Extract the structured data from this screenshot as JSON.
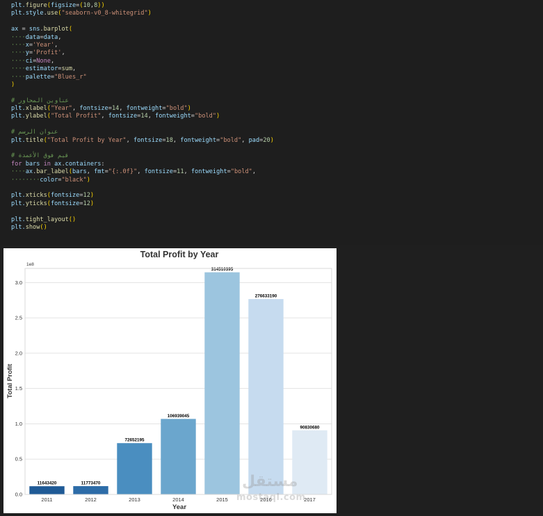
{
  "code_cell": {
    "lines": [
      [
        {
          "t": "plt.",
          "c": "n"
        },
        {
          "t": "figure",
          "c": "f"
        },
        {
          "t": "(",
          "c": "p"
        },
        {
          "t": "figsize",
          "c": "n"
        },
        {
          "t": "=",
          "c": ""
        },
        {
          "t": "(",
          "c": "p"
        },
        {
          "t": "10",
          "c": "num"
        },
        {
          "t": ",",
          "c": ""
        },
        {
          "t": "8",
          "c": "num"
        },
        {
          "t": "))",
          "c": "p"
        }
      ],
      [
        {
          "t": "plt.",
          "c": "n"
        },
        {
          "t": "style",
          "c": "n"
        },
        {
          "t": ".",
          "c": ""
        },
        {
          "t": "use",
          "c": "f"
        },
        {
          "t": "(",
          "c": "p"
        },
        {
          "t": "\"seaborn-v0_8-whitegrid\"",
          "c": "s"
        },
        {
          "t": ")",
          "c": "p"
        }
      ],
      [],
      [
        {
          "t": "ax",
          "c": "n"
        },
        {
          "t": " = ",
          "c": ""
        },
        {
          "t": "sns",
          "c": "n"
        },
        {
          "t": ".",
          "c": ""
        },
        {
          "t": "barplot",
          "c": "f"
        },
        {
          "t": "(",
          "c": "p"
        }
      ],
      [
        {
          "t": "····",
          "c": "c"
        },
        {
          "t": "data",
          "c": "n"
        },
        {
          "t": "=",
          "c": ""
        },
        {
          "t": "data",
          "c": "n"
        },
        {
          "t": ",",
          "c": ""
        }
      ],
      [
        {
          "t": "····",
          "c": "c"
        },
        {
          "t": "x",
          "c": "n"
        },
        {
          "t": "=",
          "c": ""
        },
        {
          "t": "'Year'",
          "c": "s"
        },
        {
          "t": ",",
          "c": ""
        }
      ],
      [
        {
          "t": "····",
          "c": "c"
        },
        {
          "t": "y",
          "c": "n"
        },
        {
          "t": "=",
          "c": ""
        },
        {
          "t": "'Profit'",
          "c": "s"
        },
        {
          "t": ",",
          "c": ""
        }
      ],
      [
        {
          "t": "····",
          "c": "c"
        },
        {
          "t": "ci",
          "c": "n"
        },
        {
          "t": "=",
          "c": ""
        },
        {
          "t": "None",
          "c": "k"
        },
        {
          "t": ",",
          "c": ""
        }
      ],
      [
        {
          "t": "····",
          "c": "c"
        },
        {
          "t": "estimator",
          "c": "n"
        },
        {
          "t": "=",
          "c": ""
        },
        {
          "t": "sum",
          "c": "f"
        },
        {
          "t": ",",
          "c": ""
        }
      ],
      [
        {
          "t": "····",
          "c": "c"
        },
        {
          "t": "palette",
          "c": "n"
        },
        {
          "t": "=",
          "c": ""
        },
        {
          "t": "\"Blues_r\"",
          "c": "s"
        }
      ],
      [
        {
          "t": ")",
          "c": "p"
        }
      ],
      [],
      [
        {
          "t": "# عناوين المحاور",
          "c": "c"
        }
      ],
      [
        {
          "t": "plt.",
          "c": "n"
        },
        {
          "t": "xlabel",
          "c": "f"
        },
        {
          "t": "(",
          "c": "p"
        },
        {
          "t": "\"Year\"",
          "c": "s"
        },
        {
          "t": ", ",
          "c": ""
        },
        {
          "t": "fontsize",
          "c": "n"
        },
        {
          "t": "=",
          "c": ""
        },
        {
          "t": "14",
          "c": "num"
        },
        {
          "t": ", ",
          "c": ""
        },
        {
          "t": "fontweight",
          "c": "n"
        },
        {
          "t": "=",
          "c": ""
        },
        {
          "t": "\"bold\"",
          "c": "s"
        },
        {
          "t": ")",
          "c": "p"
        }
      ],
      [
        {
          "t": "plt.",
          "c": "n"
        },
        {
          "t": "ylabel",
          "c": "f"
        },
        {
          "t": "(",
          "c": "p"
        },
        {
          "t": "\"Total Profit\"",
          "c": "s"
        },
        {
          "t": ", ",
          "c": ""
        },
        {
          "t": "fontsize",
          "c": "n"
        },
        {
          "t": "=",
          "c": ""
        },
        {
          "t": "14",
          "c": "num"
        },
        {
          "t": ", ",
          "c": ""
        },
        {
          "t": "fontweight",
          "c": "n"
        },
        {
          "t": "=",
          "c": ""
        },
        {
          "t": "\"bold\"",
          "c": "s"
        },
        {
          "t": ")",
          "c": "p"
        }
      ],
      [],
      [
        {
          "t": "# عنوان الرسم",
          "c": "c"
        }
      ],
      [
        {
          "t": "plt.",
          "c": "n"
        },
        {
          "t": "title",
          "c": "f"
        },
        {
          "t": "(",
          "c": "p"
        },
        {
          "t": "\"Total Profit by Year\"",
          "c": "s"
        },
        {
          "t": ", ",
          "c": ""
        },
        {
          "t": "fontsize",
          "c": "n"
        },
        {
          "t": "=",
          "c": ""
        },
        {
          "t": "18",
          "c": "num"
        },
        {
          "t": ", ",
          "c": ""
        },
        {
          "t": "fontweight",
          "c": "n"
        },
        {
          "t": "=",
          "c": ""
        },
        {
          "t": "\"bold\"",
          "c": "s"
        },
        {
          "t": ", ",
          "c": ""
        },
        {
          "t": "pad",
          "c": "n"
        },
        {
          "t": "=",
          "c": ""
        },
        {
          "t": "20",
          "c": "num"
        },
        {
          "t": ")",
          "c": "p"
        }
      ],
      [],
      [
        {
          "t": "# قيم فوق الأعمدة",
          "c": "c"
        }
      ],
      [
        {
          "t": "for",
          "c": "k"
        },
        {
          "t": " bars ",
          "c": "n"
        },
        {
          "t": "in",
          "c": "k"
        },
        {
          "t": " ax",
          "c": "n"
        },
        {
          "t": ".",
          "c": ""
        },
        {
          "t": "containers",
          "c": "n"
        },
        {
          "t": ":",
          "c": ""
        }
      ],
      [
        {
          "t": "····",
          "c": "c"
        },
        {
          "t": "ax",
          "c": "n"
        },
        {
          "t": ".",
          "c": ""
        },
        {
          "t": "bar_label",
          "c": "f"
        },
        {
          "t": "(",
          "c": "p"
        },
        {
          "t": "bars",
          "c": "n"
        },
        {
          "t": ", ",
          "c": ""
        },
        {
          "t": "fmt",
          "c": "n"
        },
        {
          "t": "=",
          "c": ""
        },
        {
          "t": "\"{:.0f}\"",
          "c": "s"
        },
        {
          "t": ", ",
          "c": ""
        },
        {
          "t": "fontsize",
          "c": "n"
        },
        {
          "t": "=",
          "c": ""
        },
        {
          "t": "11",
          "c": "num"
        },
        {
          "t": ", ",
          "c": ""
        },
        {
          "t": "fontweight",
          "c": "n"
        },
        {
          "t": "=",
          "c": ""
        },
        {
          "t": "\"bold\"",
          "c": "s"
        },
        {
          "t": ",",
          "c": ""
        }
      ],
      [
        {
          "t": "········",
          "c": "c"
        },
        {
          "t": "color",
          "c": "n"
        },
        {
          "t": "=",
          "c": ""
        },
        {
          "t": "\"black\"",
          "c": "s"
        },
        {
          "t": ")",
          "c": "p"
        }
      ],
      [],
      [
        {
          "t": "plt.",
          "c": "n"
        },
        {
          "t": "xticks",
          "c": "f"
        },
        {
          "t": "(",
          "c": "p"
        },
        {
          "t": "fontsize",
          "c": "n"
        },
        {
          "t": "=",
          "c": ""
        },
        {
          "t": "12",
          "c": "num"
        },
        {
          "t": ")",
          "c": "p"
        }
      ],
      [
        {
          "t": "plt.",
          "c": "n"
        },
        {
          "t": "yticks",
          "c": "f"
        },
        {
          "t": "(",
          "c": "p"
        },
        {
          "t": "fontsize",
          "c": "n"
        },
        {
          "t": "=",
          "c": ""
        },
        {
          "t": "12",
          "c": "num"
        },
        {
          "t": ")",
          "c": "p"
        }
      ],
      [],
      [
        {
          "t": "plt.",
          "c": "n"
        },
        {
          "t": "tight_layout",
          "c": "f"
        },
        {
          "t": "(",
          "c": "p"
        },
        {
          "t": ")",
          "c": "p"
        }
      ],
      [
        {
          "t": "plt.",
          "c": "n"
        },
        {
          "t": "show",
          "c": "f"
        },
        {
          "t": "(",
          "c": "p"
        },
        {
          "t": ")",
          "c": "p"
        }
      ]
    ]
  },
  "chart_data": {
    "type": "bar",
    "title": "Total Profit by Year",
    "xlabel": "Year",
    "ylabel": "Total Profit",
    "offset_label": "1e8",
    "categories": [
      "2011",
      "2012",
      "2013",
      "2014",
      "2015",
      "2016",
      "2017"
    ],
    "values": [
      11643420,
      11773470,
      72652195,
      106939045,
      314510395,
      276633190,
      90830680
    ],
    "value_labels": [
      "11643420",
      "11773470",
      "72652195",
      "106939045",
      "314510395",
      "276633190",
      "90830680"
    ],
    "colors": [
      "#1f5a96",
      "#2d6ca8",
      "#4a8ec0",
      "#6ba6cd",
      "#9cc5df",
      "#c6dbef",
      "#dfeaf4"
    ],
    "yticks": [
      "0.0",
      "0.5",
      "1.0",
      "1.5",
      "2.0",
      "2.5",
      "3.0"
    ],
    "ylim": [
      0,
      320000000
    ],
    "grid": true
  },
  "watermark": {
    "arabic": "مستقل",
    "latin": "mostaql.com"
  }
}
